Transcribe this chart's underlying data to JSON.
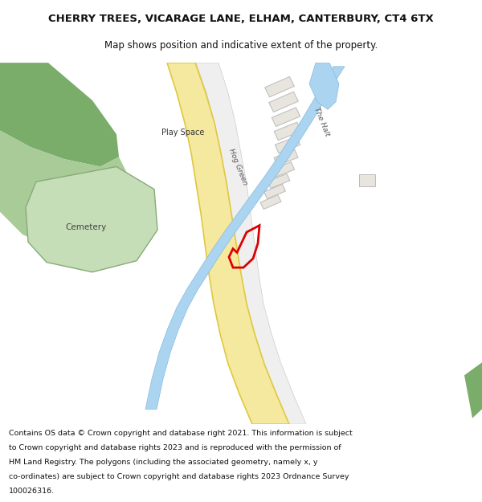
{
  "title_line1": "CHERRY TREES, VICARAGE LANE, ELHAM, CANTERBURY, CT4 6TX",
  "title_line2": "Map shows position and indicative extent of the property.",
  "footer_lines": [
    "Contains OS data © Crown copyright and database right 2021. This information is subject",
    "to Crown copyright and database rights 2023 and is reproduced with the permission of",
    "HM Land Registry. The polygons (including the associated geometry, namely x, y",
    "co-ordinates) are subject to Crown copyright and database rights 2023 Ordnance Survey",
    "100026316."
  ],
  "map_bg": "#f5f3ee",
  "road_main_color": "#f5e9a0",
  "road_main_edge": "#e0c840",
  "water_color": "#aad4f0",
  "water_edge": "#88bbdd",
  "green_dark": "#7aad6a",
  "green_light": "#a8cb98",
  "cemetery_color": "#c5deb8",
  "cemetery_edge": "#88aa78",
  "building_color": "#e8e4de",
  "building_edge": "#bbbbbb",
  "plot_edge_color": "#dd0000",
  "plot_edge_width": 2.0,
  "label_play_space": "Play Space",
  "label_cemetery": "Cemetery",
  "label_hog_green": "Hog Green",
  "label_the_halt": "The Halt"
}
